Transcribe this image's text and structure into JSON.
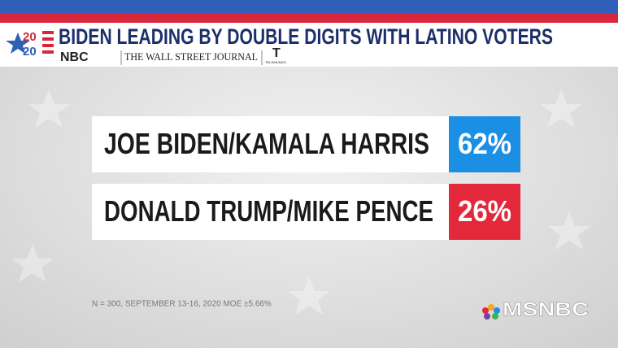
{
  "chart_data": {
    "type": "scoreboard",
    "title": "BIDEN LEADING BY DOUBLE DIGITS WITH LATINO VOTERS",
    "logo_year": [
      "20",
      "20"
    ],
    "sources": [
      "NBC",
      "THE WALL STREET JOURNAL",
      "TELEMUNDO"
    ],
    "categories": [
      "JOE BIDEN/KAMALA HARRIS",
      "DONALD TRUMP/MIKE PENCE"
    ],
    "values": [
      62,
      26
    ],
    "value_labels": [
      "62%",
      "26%"
    ],
    "colors": [
      "#1b8fe3",
      "#e3283c"
    ],
    "note": "N = 300, SEPTEMBER 13-16, 2020 MOE ±5.66%",
    "network": "MSNBC"
  }
}
